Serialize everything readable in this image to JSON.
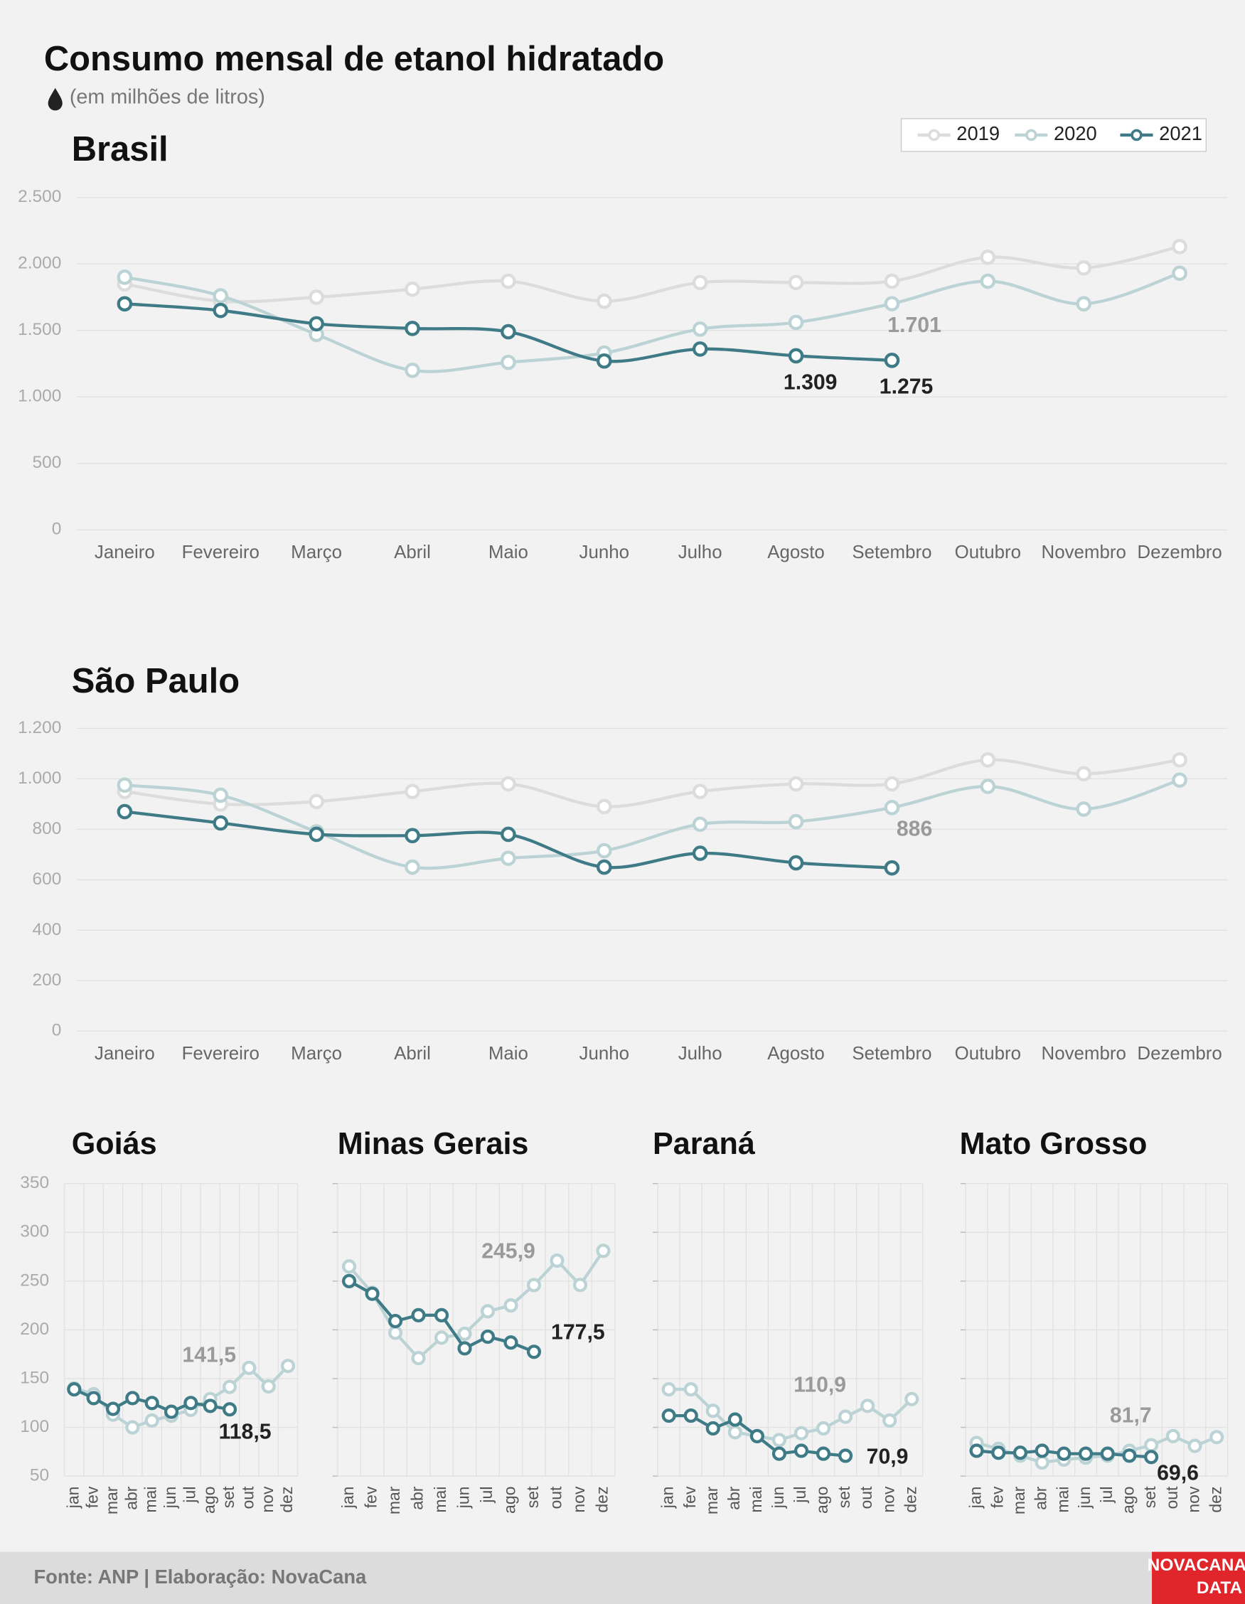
{
  "title": "Consumo mensal de etanol hidratado",
  "subtitle": "(em milhões de litros)",
  "footer": "Fonte: ANP | Elaboração: NovaCana",
  "logo": [
    "NOVACANA",
    "DATA"
  ],
  "chart_data": [
    {
      "type": "line",
      "title": "Brasil",
      "smooth": true,
      "grid": true,
      "legend": "top-right",
      "categories": [
        "Janeiro",
        "Fevereiro",
        "Março",
        "Abril",
        "Maio",
        "Junho",
        "Julho",
        "Agosto",
        "Setembro",
        "Outubro",
        "Novembro",
        "Dezembro"
      ],
      "ylim": [
        0,
        2500
      ],
      "yticks": [
        0,
        500,
        {
          "value": 1000,
          "label": "1.000"
        },
        {
          "value": 1500,
          "label": "1.500"
        },
        {
          "value": 2000,
          "label": "2.000"
        },
        {
          "value": 2500,
          "label": "2.500"
        }
      ],
      "series": [
        {
          "name": "2019",
          "color": "#dcdcdc",
          "values": [
            1850,
            1720,
            1750,
            1810,
            1870,
            1720,
            1860,
            1860,
            1870,
            2050,
            1970,
            2130
          ]
        },
        {
          "name": "2020",
          "color": "#bcd3d6",
          "values": [
            1900,
            1760,
            1470,
            1200,
            1260,
            1330,
            1510,
            1560,
            1701,
            1870,
            1700,
            1930
          ],
          "value_labels": [
            null,
            null,
            null,
            null,
            null,
            null,
            null,
            null,
            "1.701",
            null,
            null,
            null
          ]
        },
        {
          "name": "2021",
          "color": "#3e7b86",
          "values": [
            1700,
            1650,
            1550,
            1515,
            1490,
            1270,
            1360,
            1309,
            1275,
            null,
            null,
            null
          ],
          "value_labels": [
            null,
            null,
            null,
            null,
            null,
            null,
            null,
            "1.309",
            "1.275",
            null,
            null,
            null
          ]
        }
      ]
    },
    {
      "type": "line",
      "title": "São Paulo",
      "smooth": true,
      "grid": true,
      "categories": [
        "Janeiro",
        "Fevereiro",
        "Março",
        "Abril",
        "Maio",
        "Junho",
        "Julho",
        "Agosto",
        "Setembro",
        "Outubro",
        "Novembro",
        "Dezembro"
      ],
      "ylim": [
        0,
        1200
      ],
      "yticks": [
        0,
        200,
        400,
        600,
        800,
        {
          "value": 1000,
          "label": "1.000"
        },
        {
          "value": 1200,
          "label": "1.200"
        }
      ],
      "series": [
        {
          "color": "#dcdcdc",
          "values": [
            950,
            900,
            910,
            950,
            980,
            890,
            950,
            980,
            980,
            1075,
            1020,
            1075
          ]
        },
        {
          "color": "#bcd3d6",
          "values": [
            975,
            935,
            790,
            650,
            685,
            715,
            820,
            830,
            886,
            970,
            880,
            995
          ],
          "value_labels": [
            null,
            null,
            null,
            null,
            null,
            null,
            null,
            null,
            "886",
            null,
            null,
            null
          ]
        },
        {
          "color": "#3e7b86",
          "values": [
            870,
            825,
            780,
            775,
            780,
            650,
            705,
            667,
            647,
            null,
            null,
            null
          ]
        }
      ]
    },
    {
      "type": "line",
      "title": "Goiás",
      "grid": true,
      "ytick_labels": true,
      "categories": [
        "jan",
        "fev",
        "mar",
        "abr",
        "mai",
        "jun",
        "jul",
        "ago",
        "set",
        "out",
        "nov",
        "dez"
      ],
      "ylim": [
        50,
        350
      ],
      "yticks": [
        50,
        100,
        150,
        200,
        250,
        300,
        350
      ],
      "series": [
        {
          "color": "#bcd3d6",
          "values": [
            140,
            134,
            113,
            100,
            107,
            112,
            118,
            129,
            141.5,
            161,
            142,
            163
          ],
          "value_labels": [
            null,
            null,
            null,
            null,
            null,
            null,
            null,
            null,
            "141,5",
            null,
            null,
            null
          ]
        },
        {
          "color": "#3e7b86",
          "values": [
            139,
            130,
            119,
            130,
            125,
            116,
            125,
            122,
            118.5,
            null,
            null,
            null
          ],
          "value_labels": [
            null,
            null,
            null,
            null,
            null,
            null,
            null,
            null,
            "118,5",
            null,
            null,
            null
          ]
        }
      ]
    },
    {
      "type": "line",
      "title": "Minas Gerais",
      "grid": true,
      "ytick_labels": false,
      "categories": [
        "jan",
        "fev",
        "mar",
        "abr",
        "mai",
        "jun",
        "jul",
        "ago",
        "set",
        "out",
        "nov",
        "dez"
      ],
      "ylim": [
        50,
        350
      ],
      "yticks": [
        50,
        100,
        150,
        200,
        250,
        300,
        350
      ],
      "series": [
        {
          "color": "#bcd3d6",
          "values": [
            265,
            238,
            197,
            171,
            192,
            196,
            219,
            225,
            245.9,
            271,
            246,
            281
          ],
          "value_labels": [
            null,
            null,
            null,
            null,
            null,
            null,
            null,
            null,
            "245,9",
            null,
            null,
            null
          ]
        },
        {
          "color": "#3e7b86",
          "values": [
            250,
            237,
            209,
            215,
            215,
            181,
            193,
            187,
            177.5,
            null,
            null,
            null
          ],
          "value_labels": [
            null,
            null,
            null,
            null,
            null,
            null,
            null,
            null,
            "177,5",
            null,
            null,
            null
          ]
        }
      ]
    },
    {
      "type": "line",
      "title": "Paraná",
      "grid": true,
      "ytick_labels": false,
      "categories": [
        "jan",
        "fev",
        "mar",
        "abr",
        "mai",
        "jun",
        "jul",
        "ago",
        "set",
        "out",
        "nov",
        "dez"
      ],
      "ylim": [
        50,
        350
      ],
      "yticks": [
        50,
        100,
        150,
        200,
        250,
        300,
        350
      ],
      "series": [
        {
          "color": "#bcd3d6",
          "values": [
            139,
            139,
            117,
            95,
            91,
            87,
            94,
            99,
            110.9,
            122,
            107,
            129
          ],
          "value_labels": [
            null,
            null,
            null,
            null,
            null,
            null,
            null,
            null,
            "110,9",
            null,
            null,
            null
          ]
        },
        {
          "color": "#3e7b86",
          "values": [
            112,
            112,
            99,
            108,
            91,
            73,
            76,
            73,
            70.9,
            null,
            null,
            null
          ],
          "value_labels": [
            null,
            null,
            null,
            null,
            null,
            null,
            null,
            null,
            "70,9",
            null,
            null,
            null
          ]
        }
      ]
    },
    {
      "type": "line",
      "title": "Mato Grosso",
      "grid": true,
      "ytick_labels": false,
      "categories": [
        "jan",
        "fev",
        "mar",
        "abr",
        "mai",
        "jun",
        "jul",
        "ago",
        "set",
        "out",
        "nov",
        "dez"
      ],
      "ylim": [
        50,
        350
      ],
      "yticks": [
        50,
        100,
        150,
        200,
        250,
        300,
        350
      ],
      "series": [
        {
          "color": "#bcd3d6",
          "values": [
            84,
            78,
            71,
            64,
            67,
            69,
            71,
            76,
            81.7,
            91,
            81,
            90
          ],
          "value_labels": [
            null,
            null,
            null,
            null,
            null,
            null,
            null,
            null,
            "81,7",
            null,
            null,
            null
          ]
        },
        {
          "color": "#3e7b86",
          "values": [
            76,
            74,
            74,
            76,
            73,
            73,
            73,
            71,
            69.6,
            null,
            null,
            null
          ],
          "value_labels": [
            null,
            null,
            null,
            null,
            null,
            null,
            null,
            null,
            "69,6",
            null,
            null,
            null
          ]
        }
      ]
    }
  ]
}
